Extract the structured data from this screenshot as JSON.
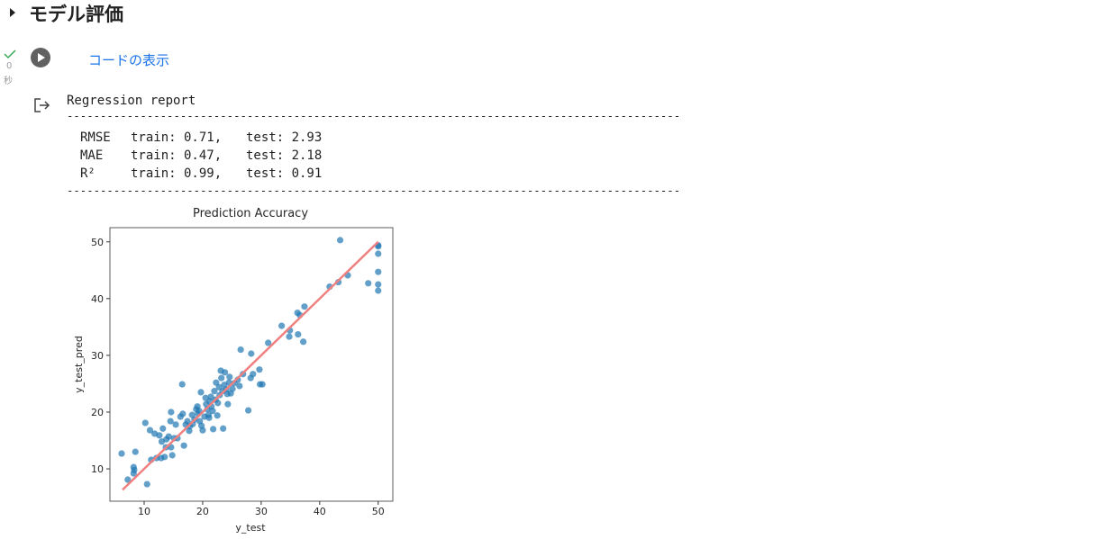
{
  "header": {
    "title": "モデル評価"
  },
  "cell": {
    "time_value": "0",
    "time_unit": "秒",
    "show_code": "コードの表示"
  },
  "output": {
    "report_title": "Regression report",
    "separator": "--------------------------------------------------------------------------------------------",
    "rows": [
      [
        "RMSE",
        "train: 0.71,",
        "test: 2.93"
      ],
      [
        "MAE",
        "train: 0.47,",
        "test: 2.18"
      ],
      [
        "R²",
        "train: 0.99,",
        "test: 0.91"
      ]
    ]
  },
  "chart_data": {
    "type": "scatter",
    "title": "Prediction Accuracy",
    "x_label": "y_test",
    "y_label": "y_test_pred",
    "color": "#1f77b4",
    "x": [
      6.15,
      7.2,
      8.2,
      8.3,
      8.5,
      8.2,
      10.2,
      10.5,
      11.0,
      11.2,
      11.8,
      12.1,
      12.6,
      12.9,
      13.0,
      13.2,
      13.5,
      13.7,
      13.8,
      14.2,
      14.5,
      14.6,
      14.6,
      14.8,
      15.1,
      15.4,
      15.7,
      16.2,
      16.5,
      16.6,
      16.8,
      17.1,
      17.4,
      17.7,
      17.8,
      18.2,
      18.3,
      18.6,
      18.9,
      19.1,
      19.2,
      19.4,
      19.5,
      19.7,
      19.8,
      20.0,
      20.3,
      20.5,
      20.6,
      20.8,
      21.0,
      21.1,
      21.2,
      21.4,
      21.5,
      21.7,
      21.8,
      22.0,
      22.2,
      22.3,
      22.5,
      22.6,
      22.8,
      22.9,
      23.1,
      23.2,
      23.4,
      23.5,
      23.7,
      23.8,
      24.0,
      24.2,
      24.3,
      24.5,
      24.6,
      24.8,
      25.1,
      25.4,
      26.0,
      26.3,
      26.5,
      26.9,
      27.8,
      28.2,
      28.3,
      28.6,
      29.7,
      29.8,
      30.2,
      31.2,
      33.5,
      34.8,
      34.9,
      36.2,
      36.3,
      36.6,
      37.2,
      37.4,
      41.7,
      43.2,
      43.5,
      44.8,
      48.3,
      50,
      50,
      50,
      50,
      50,
      50
    ],
    "y": [
      12.7,
      8.1,
      10.3,
      9.8,
      13.0,
      9.2,
      18.1,
      7.3,
      16.8,
      11.6,
      16.2,
      11.9,
      15.9,
      11.9,
      14.8,
      17.1,
      12.1,
      13.8,
      15.2,
      15.7,
      18.4,
      20.0,
      13.8,
      12.4,
      15.4,
      17.8,
      15.4,
      19.2,
      24.9,
      19.7,
      14.1,
      17.8,
      18.4,
      16.7,
      17.5,
      19.5,
      17.9,
      18.7,
      20.5,
      21.0,
      19.7,
      20.2,
      18.4,
      23.5,
      17.6,
      16.8,
      19.2,
      22.5,
      21.4,
      20.5,
      19.5,
      19.0,
      21.9,
      22.7,
      21.0,
      20.2,
      17.0,
      23.7,
      22.2,
      25.2,
      19.4,
      21.6,
      24.4,
      23.0,
      27.3,
      26.0,
      23.7,
      17.1,
      24.8,
      27.0,
      24.0,
      23.2,
      21.4,
      25.2,
      26.2,
      23.3,
      24.1,
      25.1,
      25.7,
      24.6,
      31.0,
      26.7,
      20.3,
      26.0,
      30.3,
      26.7,
      27.5,
      24.9,
      24.9,
      32.2,
      35.2,
      33.3,
      34.4,
      37.5,
      33.7,
      37.1,
      32.4,
      38.6,
      42.1,
      42.9,
      50.3,
      44.1,
      42.7,
      49.4,
      49.2,
      47.9,
      44.7,
      42.5,
      41.4
    ],
    "line": {
      "color": "#f08080",
      "x": [
        6.3,
        50
      ],
      "y": [
        6.3,
        50
      ]
    },
    "xlim": [
      4.15,
      52.5
    ],
    "ylim": [
      4.3,
      52.5
    ],
    "xticks": [
      10,
      20,
      30,
      40,
      50
    ],
    "yticks": [
      10,
      20,
      30,
      40,
      50
    ]
  }
}
